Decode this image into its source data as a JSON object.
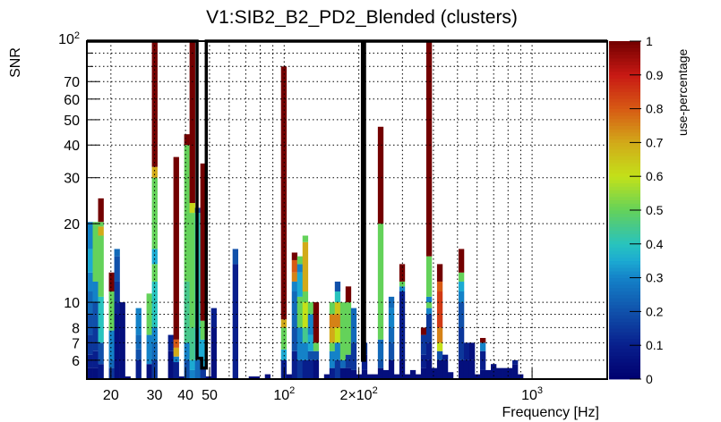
{
  "chart_data": {
    "type": "heatmap",
    "title": "V1:SIB2_B2_PD2_Blended (clusters)",
    "xlabel": "Frequency [Hz]",
    "ylabel": "SNR",
    "zlabel": "use-percentage",
    "x_scale": "log",
    "y_scale": "log",
    "xlim": [
      16,
      2010
    ],
    "ylim": [
      5.08,
      100
    ],
    "zlim": [
      0,
      1
    ],
    "grid": true,
    "x_ticks": [
      {
        "value": 20,
        "label": "20"
      },
      {
        "value": 30,
        "label": "30"
      },
      {
        "value": 40,
        "label": "40"
      },
      {
        "value": 50,
        "label": "50"
      },
      {
        "value": 100,
        "label": "10",
        "sup": "2"
      },
      {
        "value": 200,
        "label": "2×10",
        "sup": "2"
      },
      {
        "value": 1000,
        "label": "10",
        "sup": "3"
      }
    ],
    "y_ticks": [
      {
        "value": 6,
        "label": "6"
      },
      {
        "value": 7,
        "label": "7"
      },
      {
        "value": 8,
        "label": "8"
      },
      {
        "value": 10,
        "label": "10"
      },
      {
        "value": 20,
        "label": "20"
      },
      {
        "value": 30,
        "label": "30"
      },
      {
        "value": 40,
        "label": "40"
      },
      {
        "value": 50,
        "label": "50"
      },
      {
        "value": 60,
        "label": "60"
      },
      {
        "value": 70,
        "label": "70"
      },
      {
        "value": 100,
        "label": "10",
        "sup": "2"
      }
    ],
    "z_ticks": [
      "0",
      "0.1",
      "0.2",
      "0.3",
      "0.4",
      "0.5",
      "0.6",
      "0.7",
      "0.8",
      "0.9",
      "1"
    ],
    "bin_log_start": 1.206,
    "bin_log_width": 0.0217,
    "columns": [
      {
        "bin": 0,
        "segments": [
          [
            5.6,
            0.05
          ],
          [
            6.3,
            0.1
          ],
          [
            7.5,
            0.15
          ],
          [
            9,
            0.2
          ],
          [
            11,
            0.25
          ],
          [
            13,
            0.3
          ],
          [
            16,
            0.35
          ],
          [
            20.3,
            0.3
          ]
        ]
      },
      {
        "bin": 1,
        "segments": [
          [
            5.6,
            0.05
          ],
          [
            6.5,
            0.1
          ],
          [
            8,
            0.15
          ],
          [
            10,
            0.2
          ],
          [
            12,
            0.3
          ],
          [
            20.3,
            0.5
          ]
        ]
      },
      {
        "bin": 2,
        "segments": [
          [
            5.8,
            0.08
          ],
          [
            7,
            0.2
          ],
          [
            10.5,
            0.4
          ],
          [
            18,
            0.5
          ],
          [
            19.5,
            0.7
          ],
          [
            20.3,
            0.5
          ],
          [
            25,
            1
          ]
        ]
      },
      {
        "bin": 4,
        "segments": [
          [
            5.6,
            0.15
          ],
          [
            6,
            0.25
          ],
          [
            7.8,
            0.3
          ],
          [
            11,
            0.5
          ],
          [
            13,
            1
          ]
        ]
      },
      {
        "bin": 5,
        "segments": [
          [
            9,
            0.05
          ],
          [
            10,
            0.1
          ],
          [
            12,
            0.15
          ],
          [
            15,
            0.2
          ],
          [
            16,
            0.25
          ]
        ]
      },
      {
        "bin": 6,
        "segments": [
          [
            10,
            0.05
          ]
        ]
      },
      {
        "bin": 7,
        "segments": [
          [
            5.2,
            0.05
          ]
        ]
      },
      {
        "bin": 9,
        "segments": [
          [
            6,
            0.1
          ],
          [
            6.6,
            0.2
          ],
          [
            7.5,
            0.25
          ],
          [
            9.5,
            0.3
          ]
        ]
      },
      {
        "bin": 11,
        "segments": [
          [
            5.8,
            0.05
          ],
          [
            7.5,
            0.3
          ],
          [
            10.8,
            0.5
          ]
        ]
      },
      {
        "bin": 12,
        "segments": [
          [
            6,
            0.15
          ],
          [
            7,
            0.25
          ],
          [
            8,
            0.3
          ],
          [
            12,
            0.4
          ],
          [
            14,
            0.5
          ],
          [
            16,
            0.35
          ],
          [
            20,
            0.5
          ],
          [
            30,
            0.5
          ],
          [
            33,
            0.7
          ],
          [
            100,
            1
          ]
        ]
      },
      {
        "bin": 15,
        "segments": [
          [
            6.5,
            0.05
          ],
          [
            7.5,
            0.1
          ]
        ]
      },
      {
        "bin": 16,
        "segments": [
          [
            5.9,
            0.1
          ],
          [
            6.2,
            0.3
          ],
          [
            6.7,
            0.7
          ],
          [
            7.2,
            0.8
          ],
          [
            36,
            1
          ]
        ]
      },
      {
        "bin": 17,
        "segments": [
          [
            5.2,
            0.05
          ]
        ]
      },
      {
        "bin": 18,
        "segments": [
          [
            6,
            0.2
          ],
          [
            7,
            0.3
          ],
          [
            12,
            0.45
          ],
          [
            40,
            0.5
          ],
          [
            44,
            1
          ]
        ]
      },
      {
        "bin": 19,
        "segments": [
          [
            5.5,
            0.3
          ],
          [
            6,
            0.35
          ],
          [
            8,
            0.45
          ],
          [
            22,
            0.5
          ],
          [
            24,
            0.62
          ],
          [
            100,
            1
          ]
        ]
      },
      {
        "bin": 20,
        "segments": [
          [
            6,
            0.25
          ],
          [
            8,
            0.35
          ],
          [
            22,
            0.4
          ],
          [
            23,
            0.2
          ]
        ]
      },
      {
        "bin": 21,
        "segments": [
          [
            5.6,
            0.15
          ],
          [
            7.2,
            0.35
          ],
          [
            8.5,
            0.5
          ],
          [
            34,
            1
          ]
        ]
      },
      {
        "bin": 22,
        "segments": [
          [
            5.2,
            0.05
          ]
        ]
      },
      {
        "bin": 23,
        "segments": [
          [
            8,
            0.05
          ],
          [
            9.5,
            0.1
          ]
        ]
      },
      {
        "bin": 27,
        "segments": [
          [
            14,
            0.1
          ],
          [
            16,
            0.2
          ]
        ]
      },
      {
        "bin": 30,
        "segments": [
          [
            5.2,
            0.05
          ]
        ]
      },
      {
        "bin": 31,
        "segments": [
          [
            5.2,
            0.05
          ]
        ]
      },
      {
        "bin": 33,
        "segments": [
          [
            5.3,
            0.05
          ]
        ]
      },
      {
        "bin": 36,
        "segments": [
          [
            6,
            0.1
          ],
          [
            6.6,
            0.35
          ],
          [
            8,
            0.5
          ],
          [
            8.6,
            0.7
          ],
          [
            80,
            1
          ]
        ]
      },
      {
        "bin": 37,
        "segments": [
          [
            5.3,
            0.05
          ]
        ]
      },
      {
        "bin": 38,
        "segments": [
          [
            6.5,
            0.1
          ],
          [
            8,
            0.2
          ],
          [
            11,
            0.25
          ],
          [
            12,
            0.3
          ],
          [
            13,
            0.75
          ],
          [
            14.5,
            0.8
          ],
          [
            15.5,
            1
          ]
        ]
      },
      {
        "bin": 39,
        "segments": [
          [
            6,
            0.15
          ],
          [
            8,
            0.3
          ],
          [
            10.5,
            0.5
          ],
          [
            13,
            0.35
          ],
          [
            14,
            0.3
          ],
          [
            15,
            0.5
          ]
        ]
      },
      {
        "bin": 40,
        "segments": [
          [
            6,
            0.1
          ],
          [
            7,
            0.3
          ],
          [
            8,
            0.45
          ],
          [
            10,
            0.6
          ],
          [
            11,
            0.5
          ],
          [
            17,
            0.7
          ],
          [
            18,
            0.5
          ]
        ]
      },
      {
        "bin": 41,
        "segments": [
          [
            6,
            0.1
          ],
          [
            6.5,
            0.2
          ],
          [
            7.5,
            0.35
          ],
          [
            9,
            0.3
          ],
          [
            10,
            0.5
          ]
        ]
      },
      {
        "bin": 42,
        "segments": [
          [
            6,
            0.05
          ],
          [
            6.5,
            0.2
          ],
          [
            7,
            0.5
          ],
          [
            10,
            1
          ]
        ]
      },
      {
        "bin": 44,
        "segments": [
          [
            5.3,
            0.05
          ]
        ]
      },
      {
        "bin": 45,
        "segments": [
          [
            5.6,
            0.1
          ],
          [
            6.5,
            0.3
          ],
          [
            7,
            0.5
          ],
          [
            8,
            0.7
          ],
          [
            9,
            0.75
          ],
          [
            10,
            0.5
          ]
        ]
      },
      {
        "bin": 46,
        "segments": [
          [
            6,
            0.15
          ],
          [
            7,
            0.3
          ],
          [
            8,
            0.6
          ],
          [
            9,
            0.75
          ],
          [
            10,
            0.65
          ],
          [
            11,
            0.4
          ],
          [
            12,
            0.2
          ]
        ]
      },
      {
        "bin": 47,
        "segments": [
          [
            5.6,
            0.05
          ],
          [
            6,
            0.25
          ],
          [
            9,
            0.5
          ],
          [
            10,
            0.5
          ]
        ]
      },
      {
        "bin": 48,
        "segments": [
          [
            5.6,
            0.05
          ],
          [
            6.3,
            0.15
          ],
          [
            7,
            0.5
          ],
          [
            10,
            0.5
          ],
          [
            11.5,
            1
          ]
        ]
      },
      {
        "bin": 49,
        "segments": [
          [
            5.5,
            0.05
          ],
          [
            7,
            0.15
          ],
          [
            9,
            0.25
          ],
          [
            9.5,
            0.25
          ]
        ]
      },
      {
        "bin": 50,
        "segments": [
          [
            5.3,
            0.05
          ]
        ]
      },
      {
        "bin": 51,
        "segments": [
          [
            5.5,
            0.05
          ],
          [
            6.3,
            0.1
          ],
          [
            7,
            0.15
          ]
        ]
      },
      {
        "bin": 52,
        "segments": [
          [
            5.3,
            0.05
          ]
        ]
      },
      {
        "bin": 53,
        "segments": [
          [
            5.3,
            0.05
          ]
        ]
      },
      {
        "bin": 54,
        "segments": [
          [
            5.6,
            0.05
          ],
          [
            6,
            0.2
          ],
          [
            7.2,
            0.25
          ],
          [
            20,
            0.5
          ],
          [
            47,
            1
          ]
        ]
      },
      {
        "bin": 55,
        "segments": [
          [
            5.5,
            0.05
          ]
        ]
      },
      {
        "bin": 56,
        "segments": [
          [
            6,
            0.05
          ],
          [
            7,
            0.2
          ],
          [
            8,
            0.25
          ],
          [
            9.5,
            0.3
          ],
          [
            10.5,
            0.25
          ]
        ]
      },
      {
        "bin": 57,
        "segments": [
          [
            5.3,
            0.05
          ]
        ]
      },
      {
        "bin": 58,
        "segments": [
          [
            6,
            0.05
          ],
          [
            11,
            0.1
          ],
          [
            11.5,
            0.3
          ],
          [
            12,
            0.5
          ],
          [
            14,
            1
          ]
        ]
      },
      {
        "bin": 59,
        "segments": [
          [
            5.3,
            0.05
          ]
        ]
      },
      {
        "bin": 60,
        "segments": [
          [
            5.5,
            0.05
          ]
        ]
      },
      {
        "bin": 61,
        "segments": [
          [
            5.3,
            0.05
          ]
        ]
      },
      {
        "bin": 62,
        "segments": [
          [
            5.6,
            0.05
          ],
          [
            6.3,
            0.1
          ],
          [
            7.5,
            0.15
          ],
          [
            8,
            1
          ]
        ]
      },
      {
        "bin": 63,
        "segments": [
          [
            6,
            0.05
          ],
          [
            7,
            0.1
          ],
          [
            9,
            0.15
          ],
          [
            9.5,
            0.3
          ],
          [
            10,
            0.5
          ],
          [
            10.5,
            0.3
          ],
          [
            15,
            0.5
          ],
          [
            100,
            1
          ]
        ]
      },
      {
        "bin": 64,
        "segments": [
          [
            5.6,
            0.05
          ]
        ]
      },
      {
        "bin": 65,
        "segments": [
          [
            6,
            0.05
          ],
          [
            6.5,
            0.2
          ],
          [
            7,
            0.6
          ],
          [
            8,
            0.75
          ],
          [
            11,
            0.85
          ],
          [
            12,
            0.8
          ],
          [
            14,
            1
          ]
        ]
      },
      {
        "bin": 66,
        "segments": [
          [
            6,
            0.05
          ],
          [
            6.3,
            0.1
          ]
        ]
      },
      {
        "bin": 67,
        "segments": [
          [
            5.4,
            0.05
          ]
        ]
      },
      {
        "bin": 69,
        "segments": [
          [
            6,
            0.05
          ],
          [
            8,
            0.15
          ],
          [
            10,
            0.2
          ],
          [
            11,
            0.3
          ],
          [
            12,
            0.35
          ],
          [
            13,
            0.5
          ],
          [
            16,
            1
          ]
        ]
      },
      {
        "bin": 70,
        "segments": [
          [
            6,
            0.05
          ],
          [
            7,
            0.1
          ]
        ]
      },
      {
        "bin": 71,
        "segments": [
          [
            6,
            0.05
          ],
          [
            7,
            0.05
          ]
        ]
      },
      {
        "bin": 72,
        "segments": [
          [
            5.3,
            0.05
          ]
        ]
      },
      {
        "bin": 73,
        "segments": [
          [
            5.5,
            0.05
          ],
          [
            6.5,
            0.1
          ],
          [
            7,
            0.3
          ],
          [
            7.3,
            1
          ]
        ]
      },
      {
        "bin": 74,
        "segments": [
          [
            5.5,
            0.05
          ]
        ]
      },
      {
        "bin": 75,
        "segments": [
          [
            5.8,
            0.05
          ]
        ]
      },
      {
        "bin": 76,
        "segments": [
          [
            5.6,
            0.05
          ]
        ]
      },
      {
        "bin": 77,
        "segments": [
          [
            5.6,
            0.05
          ]
        ]
      },
      {
        "bin": 78,
        "segments": [
          [
            5.6,
            0.05
          ]
        ]
      },
      {
        "bin": 79,
        "segments": [
          [
            5.8,
            0.05
          ],
          [
            6,
            0.1
          ]
        ]
      },
      {
        "bin": 80,
        "segments": [
          [
            5.3,
            0.05
          ]
        ]
      }
    ],
    "contour": [
      [
        16,
        100
      ],
      [
        44.5,
        100
      ],
      [
        44.5,
        6.1
      ],
      [
        46.5,
        6.1
      ],
      [
        46.5,
        5.6
      ],
      [
        48.5,
        5.6
      ],
      [
        48.5,
        100
      ],
      [
        207,
        100
      ],
      [
        207,
        6.0
      ],
      [
        211,
        6.0
      ],
      [
        211,
        100
      ],
      [
        2010,
        100
      ]
    ]
  }
}
